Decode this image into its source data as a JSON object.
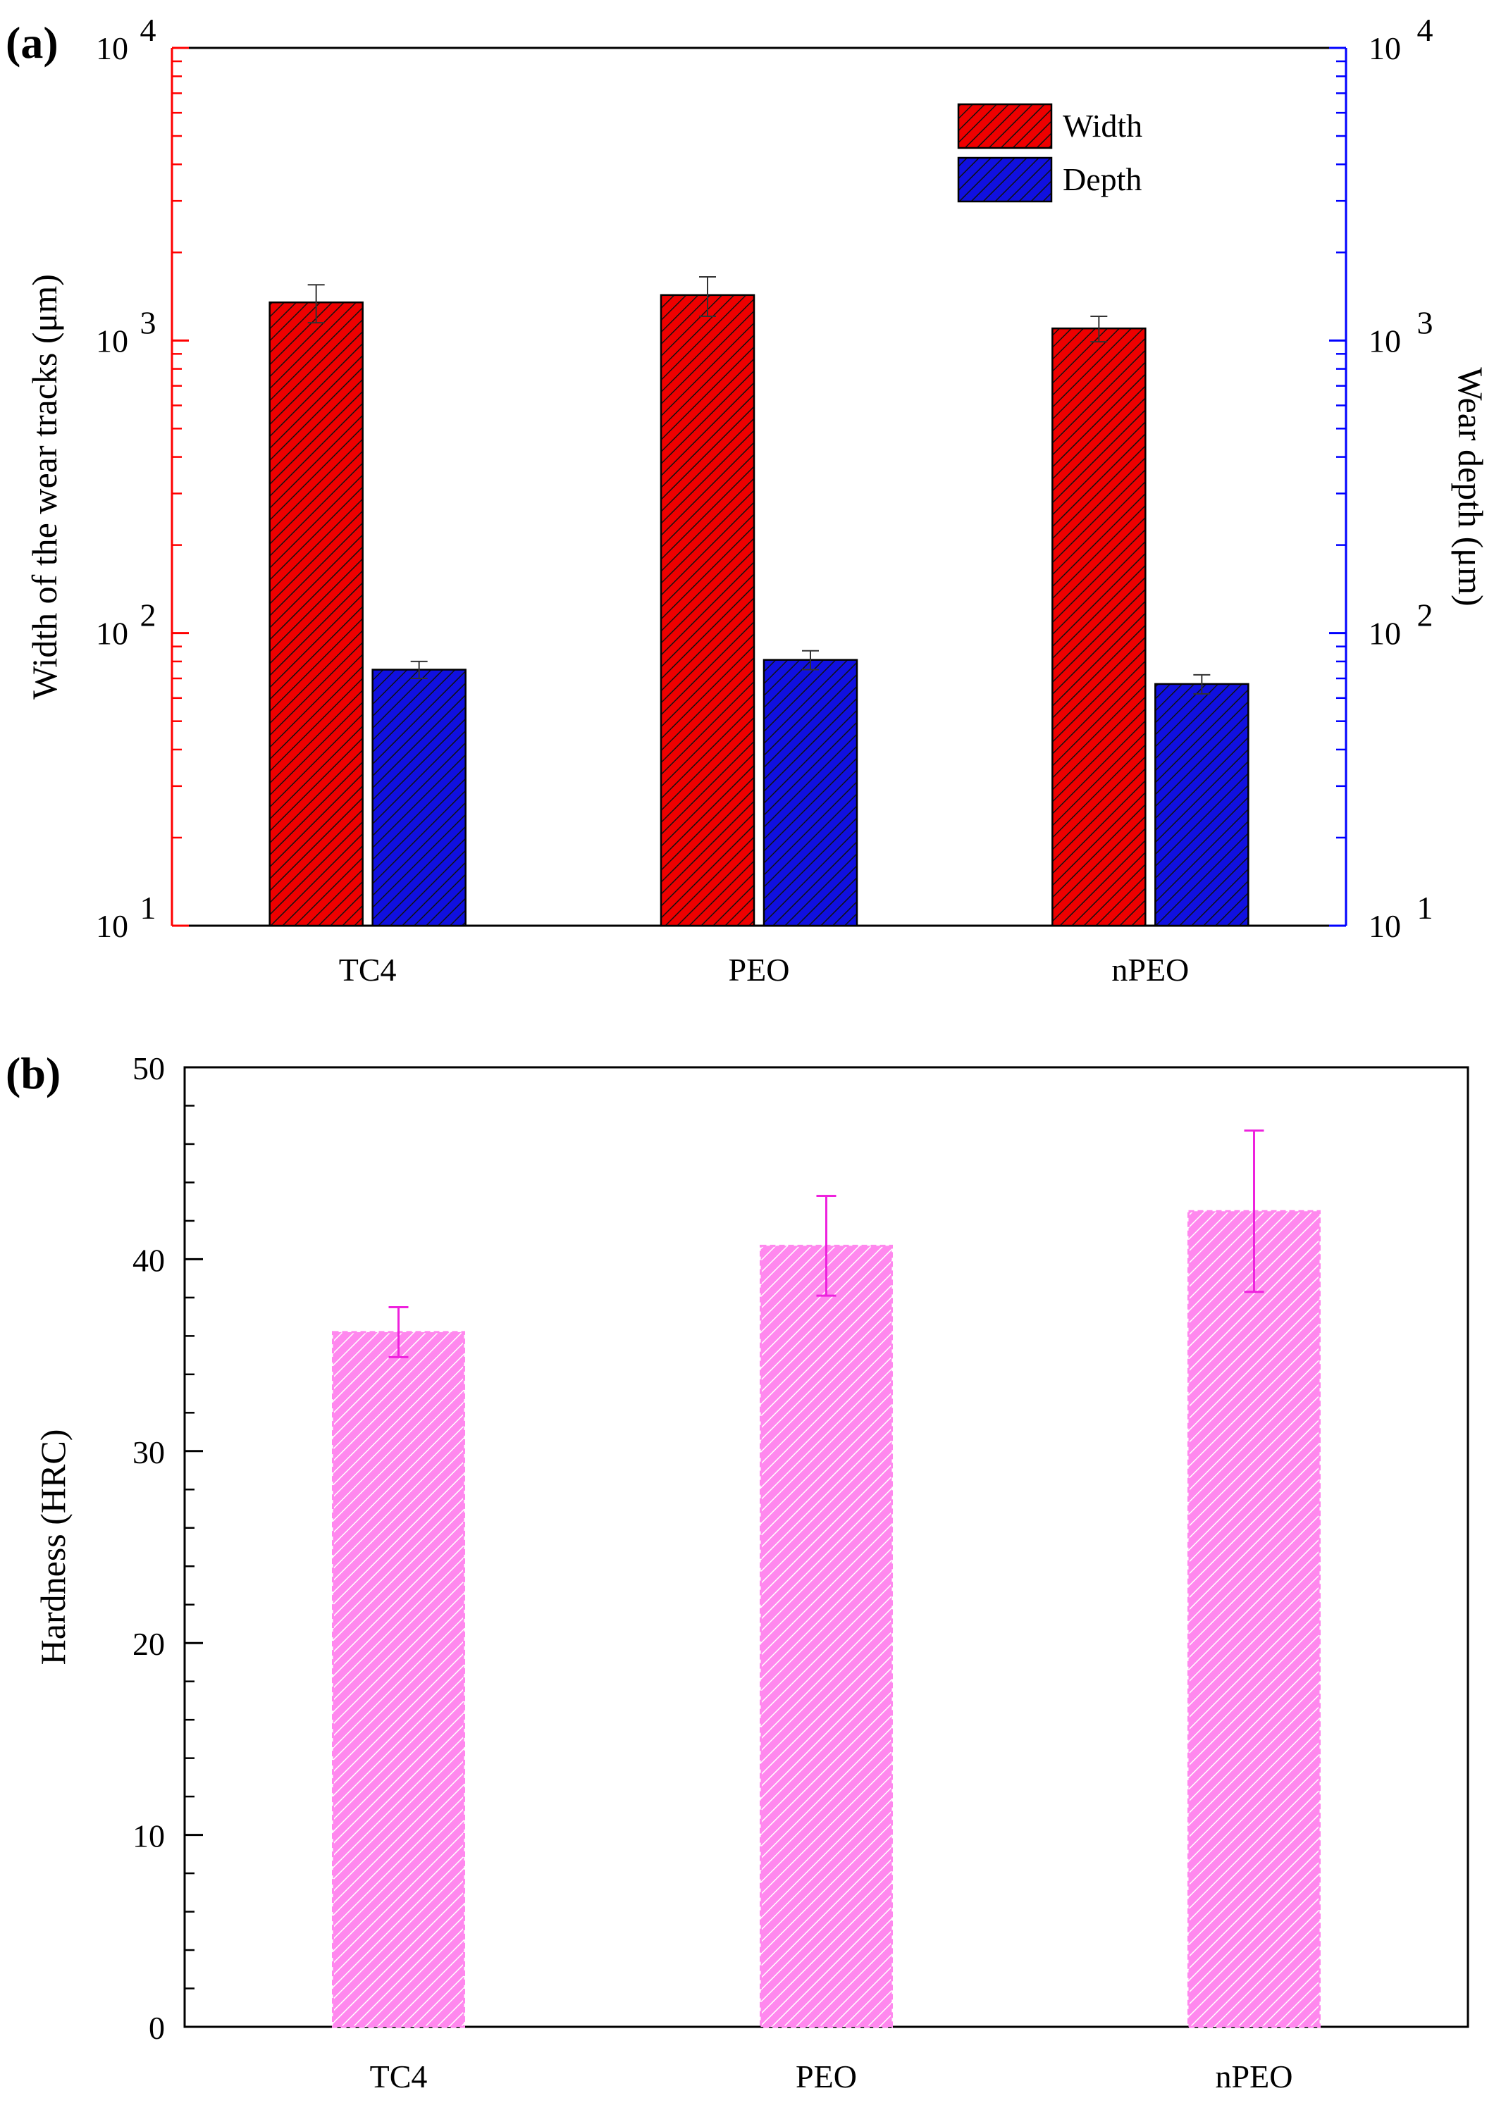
{
  "figure": {
    "panel_a_label": "(a)",
    "panel_b_label": "(b)"
  },
  "chart_data": [
    {
      "type": "bar",
      "panel": "(a)",
      "categories": [
        "TC4",
        "PEO",
        "nPEO"
      ],
      "ylabel": "Width of the wear tracks (μm)",
      "y2label": "Wear depth (μm)",
      "yscale": "log",
      "ylim": [
        10,
        10000
      ],
      "y2lim": [
        10,
        10000
      ],
      "yticks": [
        10,
        100,
        1000,
        10000
      ],
      "ytick_labels": [
        {
          "base": "10",
          "exp": "1"
        },
        {
          "base": "10",
          "exp": "2"
        },
        {
          "base": "10",
          "exp": "3"
        },
        {
          "base": "10",
          "exp": "4"
        }
      ],
      "legend_position": "top-right",
      "series": [
        {
          "name": "Width",
          "axis": "left",
          "color": "#ee0000",
          "hatch": "diagonal",
          "values": [
            1350,
            1430,
            1100
          ],
          "errors": [
            200,
            220,
            110
          ]
        },
        {
          "name": "Depth",
          "axis": "right",
          "color": "#1010e0",
          "hatch": "diagonal",
          "values": [
            75,
            81,
            67
          ],
          "errors": [
            5,
            6,
            5
          ]
        }
      ],
      "left_axis_color": "#ff0000",
      "right_axis_color": "#0000ff"
    },
    {
      "type": "bar",
      "panel": "(b)",
      "categories": [
        "TC4",
        "PEO",
        "nPEO"
      ],
      "ylabel": "Hardness (HRC)",
      "ylim": [
        0,
        50
      ],
      "yticks": [
        0,
        10,
        20,
        30,
        40,
        50
      ],
      "series": [
        {
          "name": "Hardness",
          "color": "#ff88ee",
          "hatch": "diagonal",
          "values": [
            36.2,
            40.7,
            42.5
          ],
          "errors": [
            1.3,
            2.6,
            4.2
          ]
        }
      ]
    }
  ]
}
